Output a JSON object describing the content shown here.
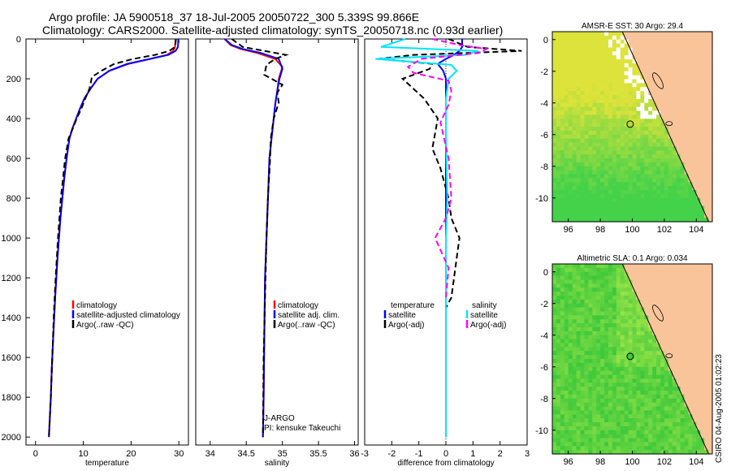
{
  "header": {
    "title_line1": "Argo profile: JA 5900518_37 18-Jul-2005 20050722_300 5.339S 99.866E",
    "title_line2": "Climatology: CARS2000. Satellite-adjusted climatology: synTS_20050718.nc (0.93d earlier)"
  },
  "side_text": "CSIRO 04-Aug-2005 01:02:23",
  "colors": {
    "climatology": "#ff0000",
    "satellite": "#0000ff",
    "argo": "#000000",
    "salinity_satellite": "#00e5ff",
    "salinity_argo": "#ff00ff",
    "land": "#f9c49a",
    "ocean_green": "#5cd84a",
    "ocean_yellow": "#d8e030"
  },
  "chart_data": [
    {
      "id": "temperature",
      "type": "line",
      "xlabel": "temperature",
      "ylabel": "",
      "xlim": [
        -2,
        32
      ],
      "ylim": [
        2040,
        0
      ],
      "xticks": [
        0,
        10,
        20,
        30
      ],
      "yticks": [
        0,
        200,
        400,
        600,
        800,
        1000,
        1200,
        1400,
        1600,
        1800,
        2000
      ],
      "legend": [
        "climatology",
        "satellite-adjusted climatology",
        "Argo(..raw -QC)"
      ],
      "series": [
        {
          "name": "climatology",
          "color": "#ff0000",
          "dash": "",
          "x": [
            29.3,
            29.2,
            28.8,
            27.5,
            24,
            19.5,
            15.5,
            13,
            11.5,
            10.2,
            9.3,
            8.5,
            7.7,
            7.1,
            6.5,
            6,
            5.2,
            4.6,
            4.1,
            3.7,
            3.4,
            3.2,
            3.0,
            2.8
          ],
          "y": [
            0,
            40,
            60,
            80,
            100,
            125,
            160,
            200,
            250,
            300,
            350,
            400,
            450,
            500,
            600,
            700,
            900,
            1100,
            1300,
            1500,
            1650,
            1800,
            1900,
            2000
          ]
        },
        {
          "name": "satellite-adjusted climatology",
          "color": "#0000ff",
          "dash": "",
          "x": [
            29.9,
            29.8,
            29.3,
            27.8,
            24,
            19.2,
            15.4,
            13,
            11.5,
            10.2,
            9.3,
            8.5,
            7.7,
            7.1,
            6.5,
            6,
            5.2,
            4.6,
            4.1,
            3.7,
            3.4,
            3.2,
            3.0,
            2.8
          ],
          "y": [
            0,
            40,
            60,
            80,
            100,
            125,
            160,
            200,
            250,
            300,
            350,
            400,
            450,
            500,
            600,
            700,
            900,
            1100,
            1300,
            1500,
            1650,
            1800,
            1900,
            2000
          ]
        },
        {
          "name": "Argo(..raw -QC)",
          "color": "#000000",
          "dash": "7,4",
          "x": [
            29.4,
            29.2,
            28,
            25,
            20.5,
            16.5,
            13.8,
            11.8,
            11.3,
            10.4,
            9.6,
            8.6,
            7.8,
            6.9,
            6.2,
            5.3,
            4.7,
            4.2,
            3.8,
            3.5,
            3.2,
            3.0,
            2.8
          ],
          "y": [
            0,
            40,
            60,
            80,
            100,
            125,
            160,
            190,
            250,
            300,
            350,
            400,
            450,
            500,
            600,
            800,
            1000,
            1200,
            1400,
            1600,
            1800,
            1900,
            2000
          ]
        }
      ]
    },
    {
      "id": "salinity",
      "type": "line",
      "xlabel": "salinity",
      "ylabel": "",
      "xlim": [
        33.8,
        36.05
      ],
      "ylim": [
        2040,
        0
      ],
      "xticks": [
        34,
        34.5,
        35,
        35.5,
        36
      ],
      "yticks": [],
      "legend": [
        "climatology",
        "satellite adj. clim.",
        "Argo(..raw -QC)"
      ],
      "annotations": [
        "J-ARGO",
        "PI: kensuke Takeuchi"
      ],
      "series": [
        {
          "name": "climatology",
          "color": "#ff0000",
          "dash": "",
          "x": [
            34.2,
            34.28,
            34.42,
            34.65,
            34.9,
            35.0,
            34.95,
            34.93,
            34.9,
            34.88,
            34.85,
            34.82,
            34.8,
            34.78,
            34.76,
            34.75,
            34.74,
            34.73
          ],
          "y": [
            0,
            30,
            50,
            70,
            100,
            140,
            200,
            260,
            330,
            400,
            500,
            600,
            800,
            1000,
            1200,
            1500,
            1800,
            2000
          ]
        },
        {
          "name": "satellite adj. clim.",
          "color": "#0000ff",
          "dash": "",
          "x": [
            34.2,
            34.3,
            34.45,
            34.7,
            34.95,
            35.0,
            34.96,
            34.93,
            34.9,
            34.88,
            34.85,
            34.82,
            34.8,
            34.78,
            34.76,
            34.75,
            34.74,
            34.73
          ],
          "y": [
            0,
            30,
            50,
            70,
            100,
            150,
            200,
            260,
            330,
            400,
            500,
            600,
            800,
            1000,
            1200,
            1500,
            1800,
            2000
          ]
        },
        {
          "name": "Argo(..raw -QC)",
          "color": "#000000",
          "dash": "7,4",
          "x": [
            34.3,
            34.45,
            34.75,
            35.05,
            34.9,
            34.78,
            34.75,
            35.0,
            34.93,
            34.95,
            34.88,
            34.84,
            34.83,
            34.8,
            34.78,
            34.76,
            34.74,
            34.73
          ],
          "y": [
            0,
            40,
            60,
            80,
            100,
            130,
            180,
            230,
            270,
            320,
            400,
            500,
            600,
            800,
            1000,
            1300,
            1600,
            2000
          ]
        }
      ]
    },
    {
      "id": "difference",
      "type": "line",
      "xlabel": "difference from climatology",
      "ylabel": "",
      "xlim": [
        -3,
        3
      ],
      "ylim": [
        2040,
        0
      ],
      "xticks": [
        -3,
        -2,
        -1,
        0,
        1,
        2,
        3
      ],
      "yticks": [],
      "legend": [
        "temperature",
        "satellite",
        "Argo(-adj)",
        "salinity",
        "satellite",
        "Argo(-adj)"
      ],
      "series": [
        {
          "name": "satellite",
          "color": "#0000ff",
          "dash": "",
          "x": [
            0.6,
            0.6,
            0.5,
            0.3,
            0.0,
            -0.3,
            -0.1,
            0.0,
            0.0,
            0.0,
            0.0,
            0.0
          ],
          "y": [
            0,
            40,
            60,
            80,
            100,
            125,
            160,
            200,
            400,
            800,
            1500,
            2000
          ]
        },
        {
          "name": "Argo(-adj)",
          "color": "#000000",
          "dash": "7,4",
          "x": [
            0.1,
            0.8,
            2.8,
            -1.2,
            -2.5,
            -0.5,
            -0.6,
            -1.6,
            -0.8,
            -0.3,
            -0.5,
            -0.2,
            0.1,
            0.2,
            0.5,
            0.4,
            0.3,
            0.2,
            0.0
          ],
          "y": [
            0,
            40,
            60,
            80,
            100,
            125,
            150,
            200,
            300,
            400,
            550,
            650,
            800,
            900,
            1000,
            1100,
            1200,
            1300,
            1350
          ]
        },
        {
          "name": "satellite (salinity)",
          "color": "#00e5ff",
          "dash": "",
          "x": [
            -1.5,
            -2.4,
            1.2,
            0.7,
            -2.6,
            0.2,
            0.4,
            0.1,
            0.0,
            0.0,
            0.05,
            0.0,
            0.0,
            0.0
          ],
          "y": [
            0,
            40,
            60,
            80,
            100,
            130,
            160,
            200,
            300,
            500,
            800,
            1000,
            1500,
            2000
          ]
        },
        {
          "name": "Argo(-adj) (salinity)",
          "color": "#ff00ff",
          "dash": "7,4",
          "x": [
            -0.5,
            0.5,
            1.5,
            1.2,
            -0.9,
            -1.4,
            -1.2,
            0.1,
            0.2,
            0.1,
            -0.2,
            0.1,
            0.2,
            0.0,
            -0.4,
            0.1,
            0.0
          ],
          "y": [
            0,
            30,
            50,
            70,
            100,
            140,
            170,
            210,
            260,
            330,
            420,
            600,
            800,
            900,
            1000,
            1150,
            1300
          ]
        }
      ]
    },
    {
      "id": "sst_map",
      "type": "heatmap",
      "title": "AMSR-E SST: 30 Argo: 29.4",
      "xlim": [
        95,
        105
      ],
      "ylim": [
        -11.5,
        0.5
      ],
      "xticks": [
        96,
        98,
        100,
        102,
        104
      ],
      "yticks": [
        0,
        -2,
        -4,
        -6,
        -8,
        -10
      ],
      "argo_location": {
        "lon": 99.866,
        "lat": -5.339
      }
    },
    {
      "id": "sla_map",
      "type": "heatmap",
      "title": "Altimetric SLA: 0.1 Argo: 0.034",
      "xlim": [
        95,
        105
      ],
      "ylim": [
        -11.5,
        0.5
      ],
      "xticks": [
        96,
        98,
        100,
        102,
        104
      ],
      "yticks": [
        0,
        -2,
        -4,
        -6,
        -8,
        -10
      ],
      "argo_location": {
        "lon": 99.866,
        "lat": -5.339
      }
    }
  ]
}
